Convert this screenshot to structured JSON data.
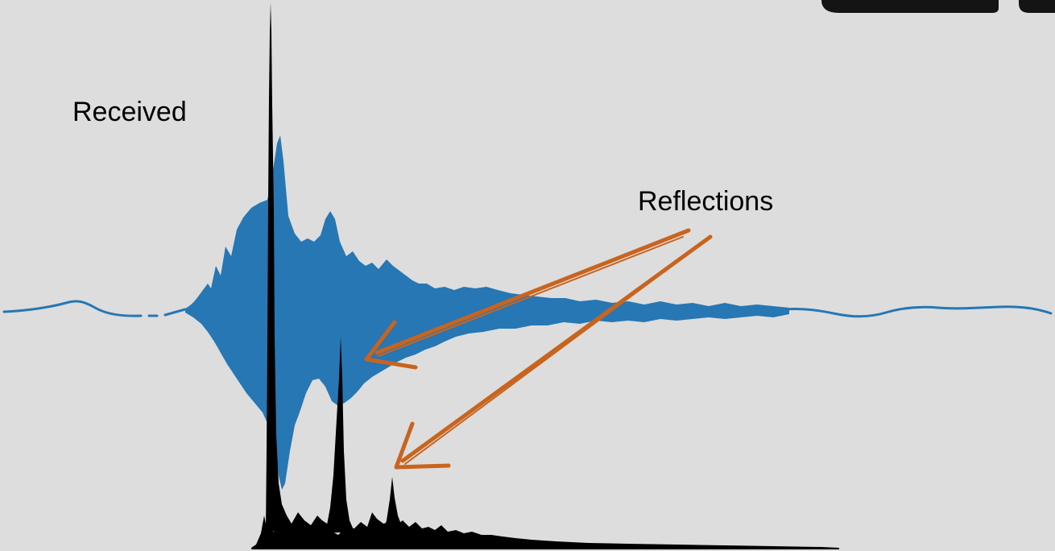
{
  "labels": {
    "received": "Received",
    "reflections": "Reflections"
  },
  "colors": {
    "background": "#dddddd",
    "waveform": "#2677b4",
    "impulse_response": "#000000",
    "arrows": "#c8641e",
    "corner_tabs": "#141414"
  },
  "icons": {
    "corner_tab_left": "dark-rounded-tab",
    "corner_tab_right": "dark-rounded-tab"
  }
}
